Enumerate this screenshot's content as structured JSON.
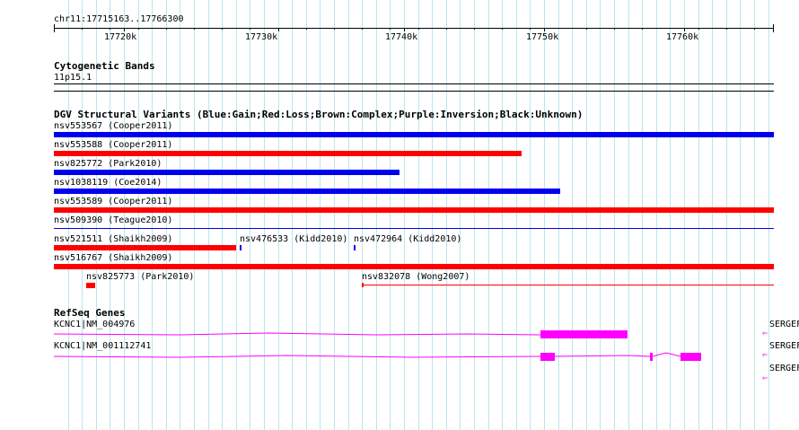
{
  "ruler": {
    "position_label": "chr11:17715163..17766300",
    "ticks": [
      "17720k",
      "17730k",
      "17740k",
      "17750k",
      "17760k"
    ]
  },
  "cytoband": {
    "title": "Cytogenetic Bands",
    "band": "11p15.1"
  },
  "dgv": {
    "title": "DGV Structural Variants (Blue:Gain;Red:Loss;Brown:Complex;Purple:Inversion;Black:Unknown)",
    "colors": {
      "gain": "#0000ee",
      "loss": "#ff0000"
    },
    "variants": [
      "nsv553567 (Cooper2011)",
      "nsv553588 (Cooper2011)",
      "nsv825772 (Park2010)",
      "nsv1038119 (Coe2014)",
      "nsv553589 (Cooper2011)",
      "nsv509390 (Teague2010)",
      "nsv521511 (Shaikh2009)",
      "nsv476533 (Kidd2010)",
      "nsv472964 (Kidd2010)",
      "nsv516767 (Shaikh2009)",
      "nsv825773 (Park2010)",
      "nsv832078 (Wong2007)"
    ]
  },
  "refseq": {
    "title": "RefSeq Genes",
    "color": "#ff00ff",
    "genes": [
      "KCNC1|NM_004976",
      "KCNC1|NM_001112741"
    ],
    "offscreen_genes": [
      "SERGEF",
      "SERGEF",
      "SERGEF"
    ]
  }
}
